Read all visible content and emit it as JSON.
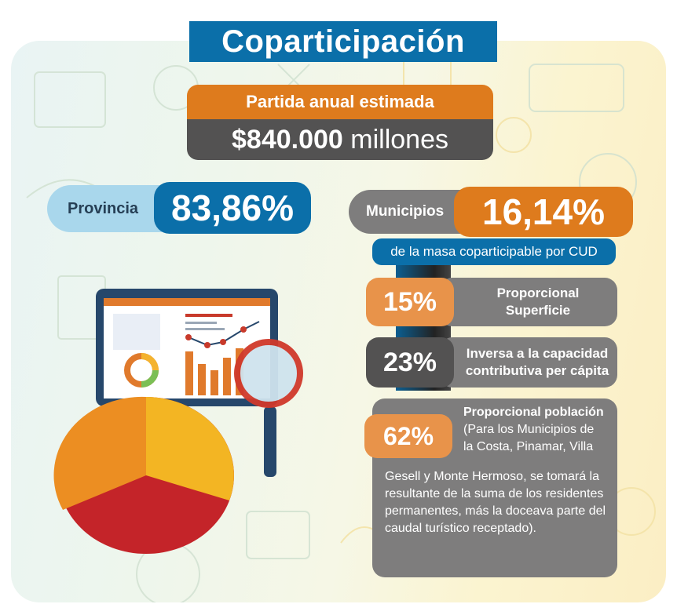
{
  "title": "Coparticipación",
  "budget": {
    "label": "Partida anual estimada",
    "amount": "$840.000",
    "unit": "millones"
  },
  "provincia": {
    "label": "Provincia",
    "value": "83,86%"
  },
  "municipios": {
    "label": "Municipios",
    "value": "16,14%",
    "note": "de la masa coparticipable por CUD"
  },
  "criteria": [
    {
      "pct": "15%",
      "text_line1": "Proporcional",
      "text_line2": "Superficie"
    },
    {
      "pct": "23%",
      "text_line1": "Inversa a la capacidad",
      "text_line2": "contributiva per cápita"
    },
    {
      "pct": "62%",
      "title": "Proporcional población",
      "line1": "(Para los Municipios de",
      "line2": "la Costa, Pinamar, Villa",
      "body": "Gesell y Monte Hermoso, se tomará la resultante de la suma de los residentes permanentes, más la doceava parte del caudal turístico receptado)."
    }
  ],
  "colors": {
    "blue": "#0b6fa9",
    "orange": "#de7b1d",
    "dark": "#535252",
    "grey": "#7e7d7d",
    "light_blue": "#a9d7ec"
  },
  "icons": [
    "monitor-icon",
    "magnifier-icon",
    "pie-chart-icon",
    "donut-chart-icon",
    "bar-chart-icon"
  ]
}
